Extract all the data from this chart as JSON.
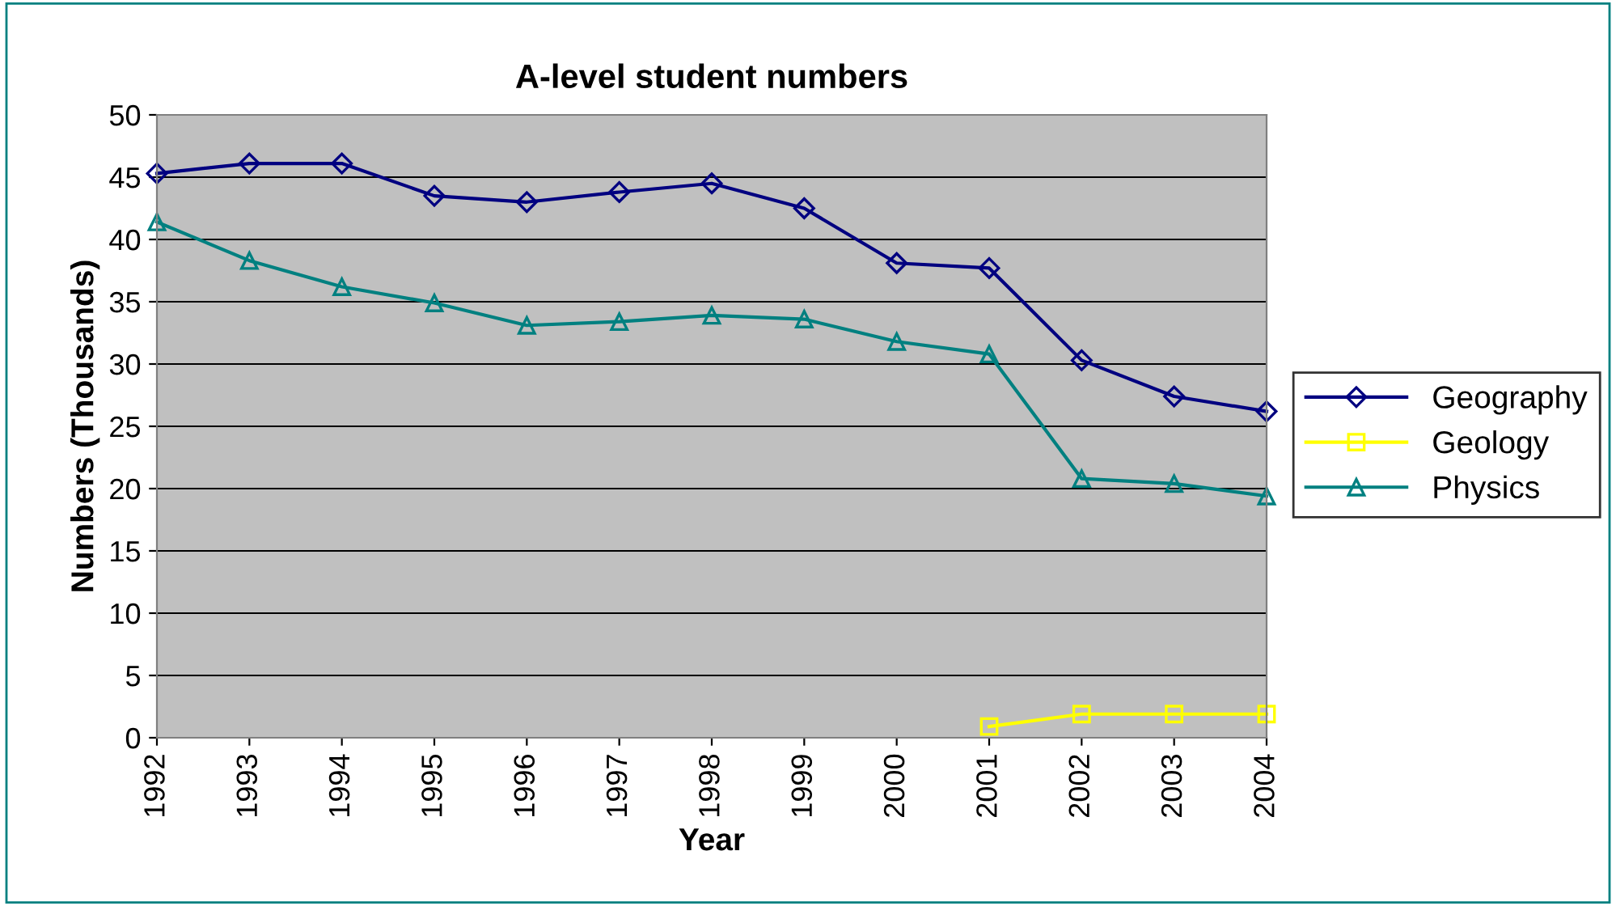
{
  "chart_data": {
    "type": "line",
    "title": "A-level student numbers",
    "xlabel": "Year",
    "ylabel": "Numbers (Thousands)",
    "categories": [
      "1992",
      "1993",
      "1994",
      "1995",
      "1996",
      "1997",
      "1998",
      "1999",
      "2000",
      "2001",
      "2002",
      "2003",
      "2004"
    ],
    "series": [
      {
        "name": "Geography",
        "color": "#000080",
        "marker": "diamond",
        "values": [
          45.3,
          46.1,
          46.1,
          43.5,
          43.0,
          43.8,
          44.5,
          42.5,
          38.1,
          37.7,
          30.3,
          27.4,
          26.2
        ]
      },
      {
        "name": "Geology",
        "color": "#ffff00",
        "marker": "square",
        "values": [
          null,
          null,
          null,
          null,
          null,
          null,
          null,
          null,
          null,
          0.9,
          1.9,
          1.9,
          1.9
        ]
      },
      {
        "name": "Physics",
        "color": "#008080",
        "marker": "triangle",
        "values": [
          41.4,
          38.3,
          36.2,
          34.9,
          33.1,
          33.4,
          33.9,
          33.6,
          31.8,
          30.8,
          20.8,
          20.4,
          19.4
        ]
      }
    ],
    "ylim": [
      0,
      50
    ],
    "yticks": [
      0,
      5,
      10,
      15,
      20,
      25,
      30,
      35,
      40,
      45,
      50
    ],
    "grid": "y",
    "legend": "right",
    "line_style": "solid"
  }
}
